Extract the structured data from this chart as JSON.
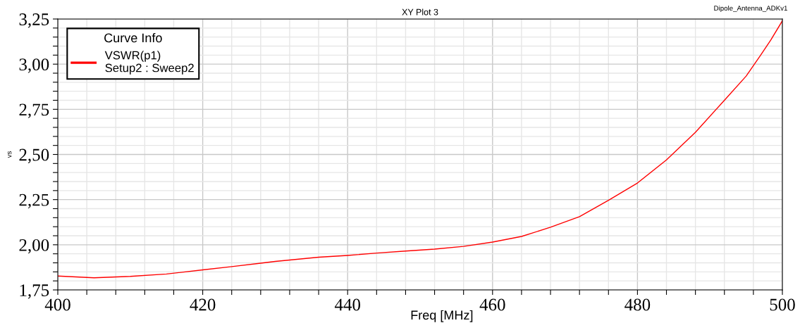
{
  "chart_data": {
    "type": "line",
    "title": "XY Plot 3",
    "xlabel": "Freq [MHz]",
    "ylabel": "vs",
    "annotations": [
      "Dipole_Antenna_ADKv1"
    ],
    "legend_title": "Curve Info",
    "x": [
      400,
      405,
      410,
      415,
      420,
      424,
      428,
      430,
      436,
      440,
      444,
      448,
      452,
      456,
      460,
      464,
      468,
      472,
      476,
      480,
      484,
      488,
      492,
      495,
      497,
      498.4,
      500
    ],
    "series": [
      {
        "name": "VSWR(p1)\nSetup2 : Sweep2",
        "color": "#ff0000",
        "values": [
          1.827,
          1.817,
          1.825,
          1.838,
          1.861,
          1.879,
          1.898,
          1.908,
          1.931,
          1.941,
          1.954,
          1.965,
          1.976,
          1.991,
          2.015,
          2.046,
          2.097,
          2.156,
          2.246,
          2.342,
          2.47,
          2.623,
          2.8,
          2.934,
          3.05,
          3.134,
          3.24
        ]
      }
    ],
    "xlim": [
      400,
      500
    ],
    "xticks": [
      400,
      {
        "value": 404,
        "label": null
      },
      {
        "value": 408,
        "label": null
      },
      {
        "value": 412,
        "label": null
      },
      {
        "value": 416,
        "label": null
      },
      420,
      {
        "value": 424,
        "label": null
      },
      {
        "value": 428,
        "label": null
      },
      {
        "value": 432,
        "label": null
      },
      {
        "value": 436,
        "label": null
      },
      440,
      {
        "value": 444,
        "label": null
      },
      {
        "value": 448,
        "label": null
      },
      {
        "value": 452,
        "label": null
      },
      {
        "value": 456,
        "label": null
      },
      460,
      {
        "value": 464,
        "label": null
      },
      {
        "value": 468,
        "label": null
      },
      {
        "value": 472,
        "label": null
      },
      {
        "value": 476,
        "label": null
      },
      480,
      {
        "value": 484,
        "label": null
      },
      {
        "value": 488,
        "label": null
      },
      {
        "value": 492,
        "label": null
      },
      {
        "value": 496,
        "label": null
      },
      500
    ],
    "ylim": [
      1.75,
      3.25
    ],
    "yticks": [
      {
        "value": 1.75,
        "label": "1,75"
      },
      {
        "value": 1.8,
        "label": null
      },
      {
        "value": 1.85,
        "label": null
      },
      {
        "value": 1.9,
        "label": null
      },
      {
        "value": 1.95,
        "label": null
      },
      {
        "value": 2.0,
        "label": "2,00"
      },
      {
        "value": 2.05,
        "label": null
      },
      {
        "value": 2.1,
        "label": null
      },
      {
        "value": 2.15,
        "label": null
      },
      {
        "value": 2.2,
        "label": null
      },
      {
        "value": 2.25,
        "label": "2,25"
      },
      {
        "value": 2.3,
        "label": null
      },
      {
        "value": 2.35,
        "label": null
      },
      {
        "value": 2.4,
        "label": null
      },
      {
        "value": 2.45,
        "label": null
      },
      {
        "value": 2.5,
        "label": "2,50"
      },
      {
        "value": 2.55,
        "label": null
      },
      {
        "value": 2.6,
        "label": null
      },
      {
        "value": 2.65,
        "label": null
      },
      {
        "value": 2.7,
        "label": null
      },
      {
        "value": 2.75,
        "label": "2,75"
      },
      {
        "value": 2.8,
        "label": null
      },
      {
        "value": 2.85,
        "label": null
      },
      {
        "value": 2.9,
        "label": null
      },
      {
        "value": 2.95,
        "label": null
      },
      {
        "value": 3.0,
        "label": "3,00"
      },
      {
        "value": 3.05,
        "label": null
      },
      {
        "value": 3.1,
        "label": null
      },
      {
        "value": 3.15,
        "label": null
      },
      {
        "value": 3.2,
        "label": null
      },
      {
        "value": 3.25,
        "label": "3,25"
      }
    ],
    "grid": true,
    "legend": "top left",
    "marker": "none",
    "line_style": "solid"
  }
}
